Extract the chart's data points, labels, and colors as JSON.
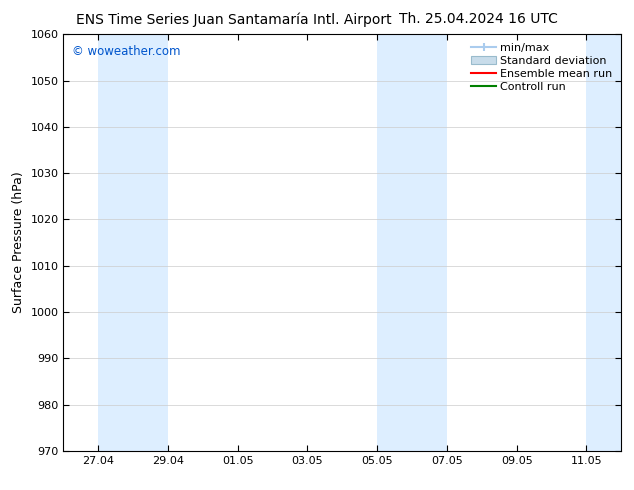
{
  "title_left": "ENS Time Series Juan Santamaría Intl. Airport",
  "title_right": "Th. 25.04.2024 16 UTC",
  "ylabel": "Surface Pressure (hPa)",
  "watermark": "© woweather.com",
  "watermark_color": "#0055cc",
  "ylim": [
    970,
    1060
  ],
  "yticks": [
    970,
    980,
    990,
    1000,
    1010,
    1020,
    1030,
    1040,
    1050,
    1060
  ],
  "xtick_labels": [
    "27.04",
    "29.04",
    "01.05",
    "03.05",
    "05.05",
    "07.05",
    "09.05",
    "11.05"
  ],
  "xtick_positions": [
    1,
    3,
    5,
    7,
    9,
    11,
    13,
    15
  ],
  "xlim": [
    0,
    16
  ],
  "shade_bands": [
    {
      "xmin": 1,
      "xmax": 3
    },
    {
      "xmin": 9,
      "xmax": 11
    },
    {
      "xmin": 15,
      "xmax": 16
    }
  ],
  "shade_color": "#ddeeff",
  "background_color": "#ffffff",
  "grid_color": "#cccccc",
  "legend_items": [
    {
      "label": "min/max",
      "color": "#aaccee",
      "type": "minmax"
    },
    {
      "label": "Standard deviation",
      "color": "#c8dcea",
      "type": "fill"
    },
    {
      "label": "Ensemble mean run",
      "color": "#ff0000",
      "type": "line"
    },
    {
      "label": "Controll run",
      "color": "#008000",
      "type": "line"
    }
  ],
  "title_fontsize": 10,
  "axis_fontsize": 9,
  "tick_fontsize": 8,
  "legend_fontsize": 8
}
